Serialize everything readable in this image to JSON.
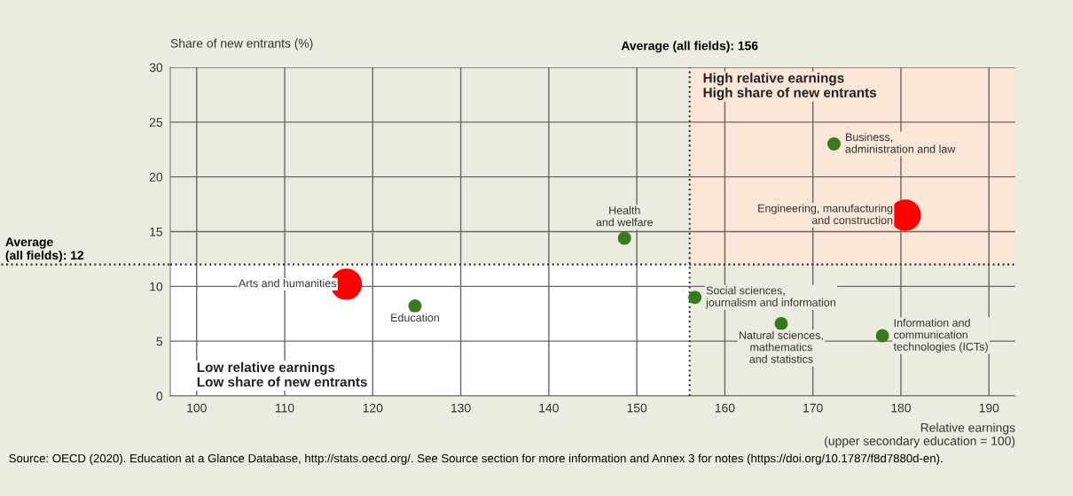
{
  "chart_data": {
    "type": "bubble",
    "xlabel": "Relative earnings\n(upper secondary education = 100)",
    "ylabel": "Share of new entrants (%)",
    "x": [
      117.0,
      124.8,
      148.6,
      172.4,
      180.5,
      156.6,
      166.4,
      177.9
    ],
    "values": [
      10.2,
      8.2,
      14.4,
      23.0,
      16.5,
      9.0,
      6.6,
      5.5
    ],
    "sizes": [
      1,
      0.16,
      0.16,
      0.16,
      1,
      0.16,
      0.16,
      0.16
    ],
    "colors": [
      "#ff0000",
      "#3a7a1e",
      "#3a7a1e",
      "#3a7a1e",
      "#ff0000",
      "#3a7a1e",
      "#3a7a1e",
      "#3a7a1e"
    ],
    "xlim": [
      97,
      193
    ],
    "xticks": [
      100,
      110,
      120,
      130,
      140,
      150,
      160,
      170,
      180,
      190
    ],
    "ylim": [
      0,
      30
    ],
    "yticks": [
      0,
      5,
      10,
      15,
      20,
      25,
      30
    ],
    "grid": true,
    "ref_lines": [
      {
        "axis": "x",
        "value": 156,
        "label": "Average (all fields): 156",
        "color": "#333333",
        "line_style": "dotted"
      },
      {
        "axis": "y",
        "value": 12,
        "label": "Average\n(all fields): 12",
        "color": "#333333",
        "line_style": "dotted"
      }
    ],
    "annotations": [
      {
        "text": "Arts and humanities",
        "x": 117.0,
        "y": 10.2
      },
      {
        "text": "Education",
        "x": 124.8,
        "y": 8.2
      },
      {
        "text": "Health\nand welfare",
        "x": 148.6,
        "y": 14.4
      },
      {
        "text": "Business,\nadministration and law",
        "x": 172.4,
        "y": 23.0
      },
      {
        "text": "Engineering, manufacturing\nand construction",
        "x": 180.5,
        "y": 16.5
      },
      {
        "text": "Social sciences,\njournalism and information",
        "x": 156.6,
        "y": 9.0
      },
      {
        "text": "Natural sciences,\nmathematics\nand statistics",
        "x": 166.4,
        "y": 6.6
      },
      {
        "text": "Information and\ncommunication\ntechnologies (ICTs)",
        "x": 177.9,
        "y": 5.5
      },
      "High relative earnings\nHigh share of new entrants",
      "Low relative earnings\nLow share of new entrants",
      "Source: OECD (2020). Education at a Glance Database, http://stats.oecd.org/. See Source section for more information and Annex 3 for notes (https://doi.org/10.1787/f8d7880d-en)."
    ]
  }
}
